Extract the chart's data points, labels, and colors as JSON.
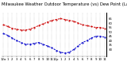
{
  "title": "Milwaukee Weather Outdoor Temperature (vs) Dew Point (Last 24 Hours)",
  "title2": "Milwaukee Weather",
  "temp_values": [
    58,
    56,
    54,
    53,
    52,
    52,
    53,
    55,
    57,
    59,
    61,
    63,
    64,
    65,
    64,
    63,
    62,
    60,
    58,
    57,
    56,
    55,
    55,
    54
  ],
  "dew_values": [
    48,
    46,
    43,
    40,
    38,
    36,
    36,
    37,
    38,
    36,
    34,
    32,
    29,
    27,
    26,
    27,
    30,
    34,
    38,
    40,
    43,
    45,
    45,
    44
  ],
  "x_labels": [
    "12a",
    "1",
    "2",
    "3",
    "4",
    "5",
    "6",
    "7",
    "8",
    "9",
    "10",
    "11",
    "12p",
    "1",
    "2",
    "3",
    "4",
    "5",
    "6",
    "7",
    "8",
    "9",
    "10",
    "11"
  ],
  "ylim": [
    22,
    72
  ],
  "yticks": [
    30,
    35,
    40,
    45,
    50,
    55,
    60,
    65
  ],
  "temp_color": "#cc0000",
  "dew_color": "#0000cc",
  "bg_color": "#ffffff",
  "grid_color": "#888888",
  "title_fontsize": 3.8,
  "tick_fontsize": 2.8,
  "line_width": 0.7,
  "marker_size": 1.0
}
